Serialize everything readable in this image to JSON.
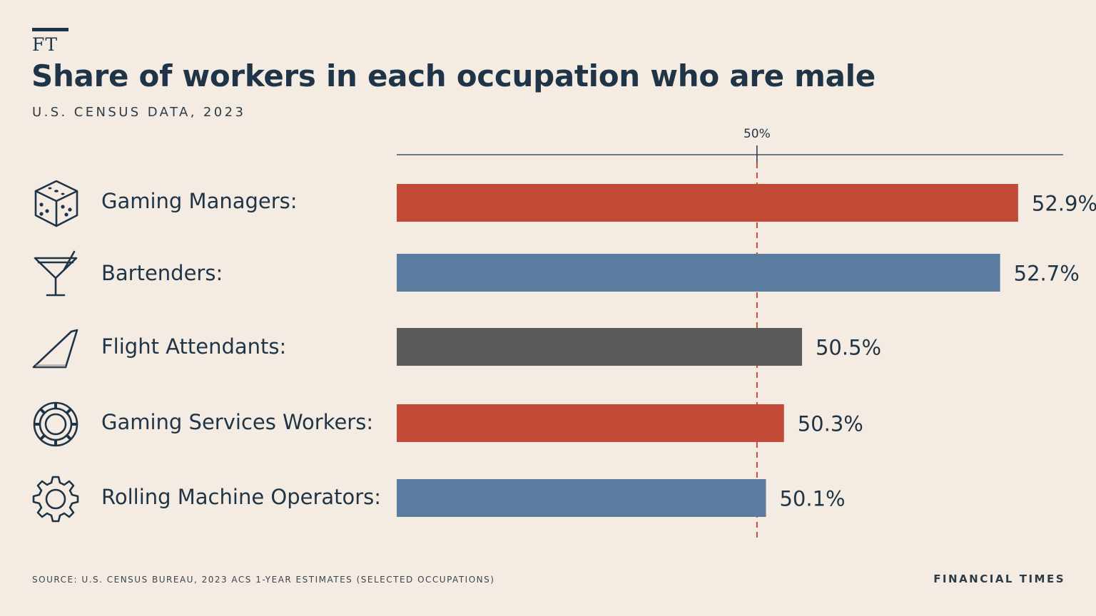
{
  "brand": "FT",
  "title": "Share of workers in each occupation who are male",
  "subtitle": "U.S. CENSUS DATA, 2023",
  "footer": {
    "source": "SOURCE: U.S. CENSUS BUREAU, 2023 ACS 1-YEAR ESTIMATES (SELECTED OCCUPATIONS)",
    "publisher": "FINANCIAL TIMES"
  },
  "chart_data": {
    "type": "bar",
    "orientation": "horizontal",
    "categories": [
      "Gaming Managers:",
      "Bartenders:",
      "Flight Attendants:",
      "Gaming Services Workers:",
      "Rolling Machine Operators:"
    ],
    "values": [
      52.9,
      52.7,
      50.5,
      50.3,
      50.1
    ],
    "value_labels": [
      "52.9%",
      "52.7%",
      "50.5%",
      "50.3%",
      "50.1%"
    ],
    "bar_colors": [
      "#c14b37",
      "#5a7d9f",
      "#5a5a5a",
      "#c14b37",
      "#5a7d9f"
    ],
    "icons": [
      "dice-icon",
      "cocktail-glass-icon",
      "airplane-tail-icon",
      "casino-chip-icon",
      "gear-icon"
    ],
    "reference_line": {
      "value": 50,
      "label": "50%",
      "color": "#c14b37",
      "style": "dashed"
    },
    "xlim": [
      46.0,
      53.4
    ],
    "title": "Share of workers in each occupation who are male",
    "subtitle": "U.S. CENSUS DATA, 2023",
    "xlabel": "",
    "ylabel": "",
    "grid": false,
    "legend": "none"
  }
}
